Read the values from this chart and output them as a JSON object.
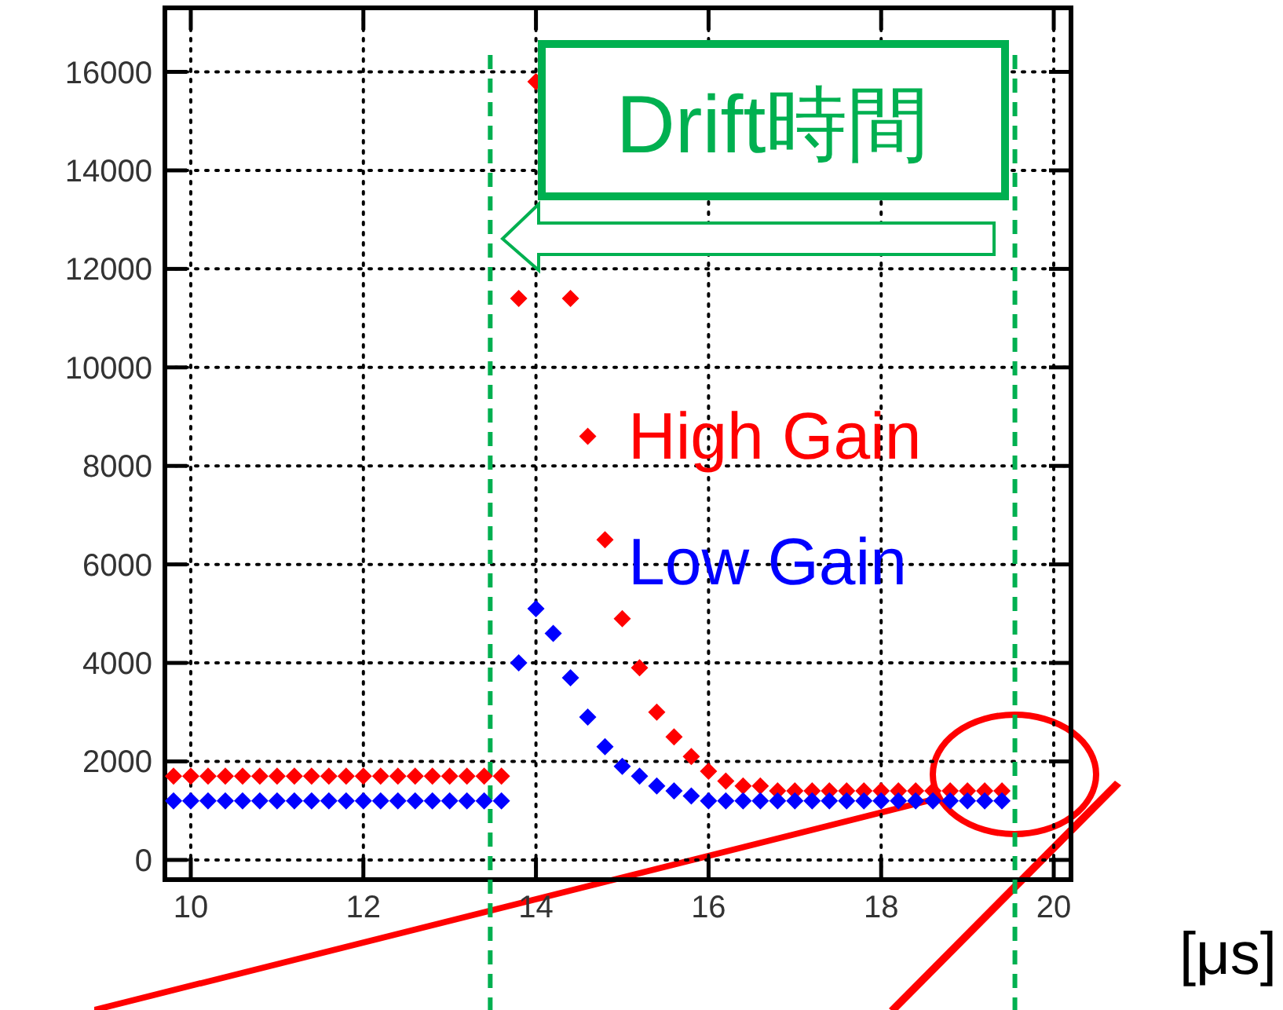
{
  "chart_data": {
    "type": "scatter",
    "xlabel": "[μs]",
    "annotations": [
      "Drift時間"
    ],
    "x": [
      9.8,
      10,
      10.2,
      10.4,
      10.6,
      10.8,
      11,
      11.2,
      11.4,
      11.6,
      11.8,
      12,
      12.2,
      12.4,
      12.6,
      12.8,
      13,
      13.2,
      13.4,
      13.6,
      13.8,
      14,
      14.2,
      14.4,
      14.6,
      14.8,
      15,
      15.2,
      15.4,
      15.6,
      15.8,
      16,
      16.2,
      16.4,
      16.6,
      16.8,
      17,
      17.2,
      17.4,
      17.6,
      17.8,
      18,
      18.2,
      18.4,
      18.6,
      18.8,
      19,
      19.2,
      19.4
    ],
    "series": [
      {
        "name": "High Gain",
        "color": "#ff0000",
        "values": [
          1700,
          1700,
          1700,
          1700,
          1700,
          1700,
          1700,
          1700,
          1700,
          1700,
          1700,
          1700,
          1700,
          1700,
          1700,
          1700,
          1700,
          1700,
          1700,
          1700,
          11400,
          15800,
          null,
          11400,
          8600,
          6500,
          4900,
          3900,
          3000,
          2500,
          2100,
          1800,
          1600,
          1500,
          1500,
          1400,
          1400,
          1400,
          1400,
          1400,
          1400,
          1400,
          1400,
          1400,
          1400,
          1400,
          1400,
          1400,
          1400
        ]
      },
      {
        "name": "Low Gain",
        "color": "#0000ff",
        "values": [
          1200,
          1200,
          1200,
          1200,
          1200,
          1200,
          1200,
          1200,
          1200,
          1200,
          1200,
          1200,
          1200,
          1200,
          1200,
          1200,
          1200,
          1200,
          1200,
          1200,
          4000,
          5100,
          4600,
          3700,
          2900,
          2300,
          1900,
          1700,
          1500,
          1400,
          1300,
          1200,
          1200,
          1200,
          1200,
          1200,
          1200,
          1200,
          1200,
          1200,
          1200,
          1200,
          1200,
          1200,
          1200,
          1200,
          1200,
          1200,
          1200
        ]
      }
    ],
    "xlim": [
      9.7,
      20.2
    ],
    "ylim": [
      -400,
      17300
    ],
    "xticks": [
      10,
      12,
      14,
      16,
      18,
      20
    ],
    "yticks": [
      0,
      2000,
      4000,
      6000,
      8000,
      10000,
      12000,
      14000,
      16000
    ],
    "grid": true,
    "marker": "diamond",
    "ref_lines": [
      {
        "axis": "x",
        "value": 13.47,
        "color": "#00b050",
        "line_style": "dashed"
      },
      {
        "axis": "x",
        "value": 19.55,
        "color": "#00b050",
        "line_style": "dashed"
      }
    ]
  }
}
